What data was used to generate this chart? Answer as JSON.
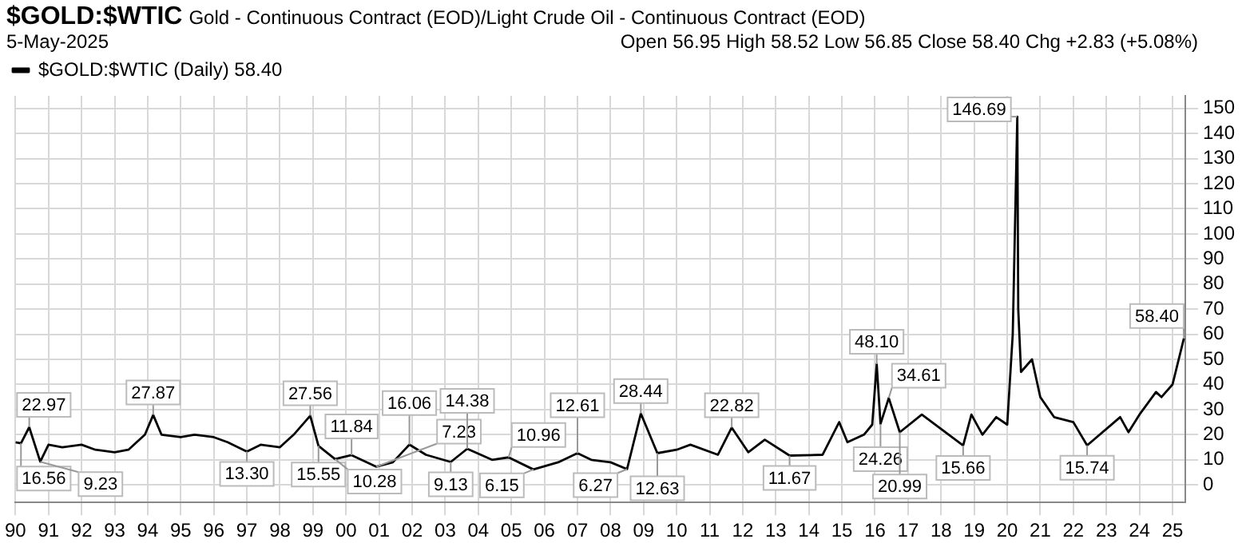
{
  "chart_data": {
    "type": "line",
    "title": "$GOLD:$WTIC",
    "subtitle": "Gold - Continuous Contract (EOD)/Light Crude Oil - Continuous Contract (EOD)",
    "x": [
      "1990-01",
      "1990-03",
      "1990-06",
      "1990-10",
      "1991-01",
      "1991-06",
      "1992-01",
      "1992-06",
      "1993-01",
      "1993-06",
      "1993-12",
      "1994-03",
      "1994-06",
      "1995-01",
      "1995-06",
      "1996-01",
      "1996-06",
      "1997-01",
      "1997-06",
      "1998-01",
      "1998-06",
      "1998-12",
      "1999-03",
      "1999-09",
      "2000-03",
      "2000-12",
      "2001-06",
      "2001-12",
      "2002-06",
      "2003-03",
      "2003-09",
      "2004-06",
      "2004-12",
      "2005-09",
      "2006-06",
      "2007-01",
      "2007-06",
      "2008-01",
      "2008-07",
      "2008-12",
      "2009-06",
      "2010-01",
      "2010-06",
      "2011-04",
      "2011-09",
      "2012-03",
      "2012-09",
      "2013-06",
      "2014-06",
      "2014-12",
      "2015-03",
      "2015-09",
      "2015-12",
      "2016-01-20",
      "2016-03",
      "2016-06",
      "2016-10",
      "2017-06",
      "2018-09",
      "2018-12",
      "2019-04",
      "2019-09",
      "2020-01",
      "2020-03",
      "2020-04-21",
      "2020-05",
      "2020-06",
      "2020-10",
      "2021-01",
      "2021-06",
      "2022-01",
      "2022-06",
      "2023-06",
      "2023-09",
      "2024-01",
      "2024-07",
      "2024-09",
      "2025-01",
      "2025-05-05"
    ],
    "series": [
      {
        "name": "$GOLD:$WTIC (Daily) 58.40",
        "color": "#000000",
        "values": [
          17,
          16.56,
          22.97,
          9.23,
          16,
          15,
          16,
          14,
          13,
          14,
          20,
          27.87,
          20,
          19,
          20,
          19,
          17,
          13.3,
          16,
          15,
          20,
          27.56,
          15.55,
          10.28,
          11.84,
          7.23,
          9,
          16.06,
          12,
          9.13,
          14.38,
          10,
          10.96,
          6.15,
          9,
          12.61,
          10,
          9,
          6.27,
          28.44,
          12.63,
          14,
          16,
          12,
          22.82,
          13,
          18,
          11.67,
          12,
          25,
          17,
          20,
          24,
          48.1,
          24.26,
          34.61,
          20.99,
          28,
          15.66,
          28,
          20,
          27,
          24,
          60,
          146.69,
          70,
          45,
          50,
          35,
          27,
          25,
          15.74,
          27,
          21,
          28,
          37,
          35,
          40,
          58.4
        ]
      }
    ],
    "xlim": [
      "1990-01-01",
      "2025-05-20"
    ],
    "xticks": [
      {
        "value": "1990",
        "label": "90"
      },
      {
        "value": "1991",
        "label": "91"
      },
      {
        "value": "1992",
        "label": "92"
      },
      {
        "value": "1993",
        "label": "93"
      },
      {
        "value": "1994",
        "label": "94"
      },
      {
        "value": "1995",
        "label": "95"
      },
      {
        "value": "1996",
        "label": "96"
      },
      {
        "value": "1997",
        "label": "97"
      },
      {
        "value": "1998",
        "label": "98"
      },
      {
        "value": "1999",
        "label": "99"
      },
      {
        "value": "2000",
        "label": "00"
      },
      {
        "value": "2001",
        "label": "01"
      },
      {
        "value": "2002",
        "label": "02"
      },
      {
        "value": "2003",
        "label": "03"
      },
      {
        "value": "2004",
        "label": "04"
      },
      {
        "value": "2005",
        "label": "05"
      },
      {
        "value": "2006",
        "label": "06"
      },
      {
        "value": "2007",
        "label": "07"
      },
      {
        "value": "2008",
        "label": "08"
      },
      {
        "value": "2009",
        "label": "09"
      },
      {
        "value": "2010",
        "label": "10"
      },
      {
        "value": "2011",
        "label": "11"
      },
      {
        "value": "2012",
        "label": "12"
      },
      {
        "value": "2013",
        "label": "13"
      },
      {
        "value": "2014",
        "label": "14"
      },
      {
        "value": "2015",
        "label": "15"
      },
      {
        "value": "2016",
        "label": "16"
      },
      {
        "value": "2017",
        "label": "17"
      },
      {
        "value": "2018",
        "label": "18"
      },
      {
        "value": "2019",
        "label": "19"
      },
      {
        "value": "2020",
        "label": "20"
      },
      {
        "value": "2021",
        "label": "21"
      },
      {
        "value": "2022",
        "label": "22"
      },
      {
        "value": "2023",
        "label": "23"
      },
      {
        "value": "2024",
        "label": "24"
      },
      {
        "value": "2025",
        "label": "25"
      }
    ],
    "ylim": [
      -7,
      155
    ],
    "yticks": [
      0,
      10,
      20,
      30,
      40,
      50,
      60,
      70,
      80,
      90,
      100,
      110,
      120,
      130,
      140,
      150
    ],
    "grid": true,
    "legend": "top left",
    "marker": "none",
    "line_style": "solid",
    "annotations": [
      "5-May-2025",
      "Open 56.95 High 58.52 Low 56.85 Close 58.40 Chg +2.83 (+5.08%)",
      {
        "text": "16.56",
        "x": "1990-03",
        "y": 16.56
      },
      {
        "text": "22.97",
        "x": "1990-06",
        "y": 22.97
      },
      {
        "text": "9.23",
        "x": "1990-10",
        "y": 9.23
      },
      {
        "text": "27.87",
        "x": "1994-03",
        "y": 27.87
      },
      {
        "text": "13.30",
        "x": "1997-01",
        "y": 13.3
      },
      {
        "text": "27.56",
        "x": "1998-12",
        "y": 27.56
      },
      {
        "text": "15.55",
        "x": "1999-03",
        "y": 15.55
      },
      {
        "text": "10.28",
        "x": "1999-09",
        "y": 10.28
      },
      {
        "text": "11.84",
        "x": "2000-03",
        "y": 11.84
      },
      {
        "text": "7.23",
        "x": "2000-12",
        "y": 7.23
      },
      {
        "text": "16.06",
        "x": "2001-12",
        "y": 16.06
      },
      {
        "text": "9.13",
        "x": "2003-03",
        "y": 9.13
      },
      {
        "text": "14.38",
        "x": "2003-09",
        "y": 14.38
      },
      {
        "text": "10.96",
        "x": "2004-12",
        "y": 10.96
      },
      {
        "text": "6.15",
        "x": "2005-09",
        "y": 6.15
      },
      {
        "text": "12.61",
        "x": "2007-01",
        "y": 12.61
      },
      {
        "text": "6.27",
        "x": "2008-07",
        "y": 6.27
      },
      {
        "text": "28.44",
        "x": "2008-12",
        "y": 28.44
      },
      {
        "text": "12.63",
        "x": "2009-06",
        "y": 12.63
      },
      {
        "text": "22.82",
        "x": "2011-09",
        "y": 22.82
      },
      {
        "text": "11.67",
        "x": "2013-06",
        "y": 11.67
      },
      {
        "text": "48.10",
        "x": "2016-01-20",
        "y": 48.1
      },
      {
        "text": "24.26",
        "x": "2016-03",
        "y": 24.26
      },
      {
        "text": "34.61",
        "x": "2016-06",
        "y": 34.61
      },
      {
        "text": "20.99",
        "x": "2016-10",
        "y": 20.99
      },
      {
        "text": "15.66",
        "x": "2018-09",
        "y": 15.66
      },
      {
        "text": "146.69",
        "x": "2020-04-21",
        "y": 146.69
      },
      {
        "text": "15.74",
        "x": "2022-06",
        "y": 15.74
      },
      {
        "text": "58.40",
        "x": "2025-05-05",
        "y": 58.4
      }
    ]
  }
}
